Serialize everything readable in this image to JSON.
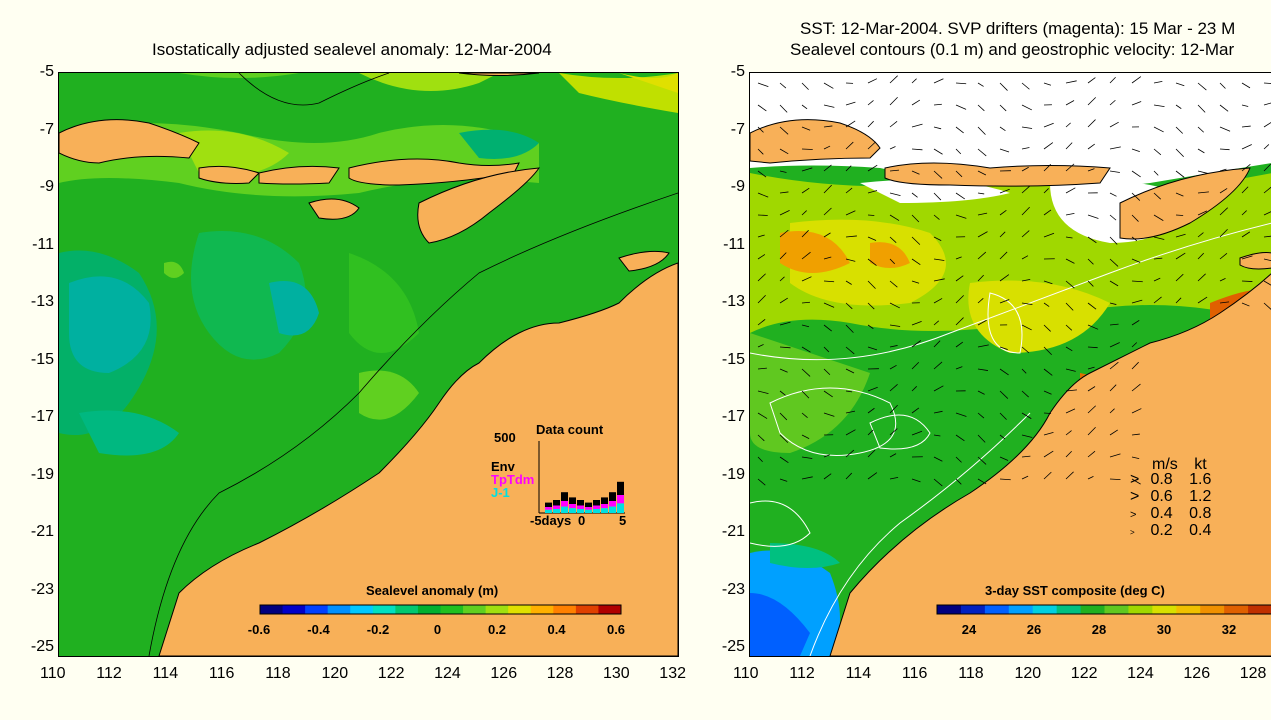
{
  "left_panel": {
    "title": "Isostatically adjusted sealevel anomaly: 12-Mar-2004",
    "colorbar": {
      "label": "Sealevel anomaly (m)",
      "ticks": [
        "-0.6",
        "-0.4",
        "-0.2",
        "0",
        "0.2",
        "0.4",
        "0.6"
      ],
      "colors": [
        "#00007f",
        "#0000c8",
        "#0040ff",
        "#0090ff",
        "#00c8ff",
        "#00e0c0",
        "#00c870",
        "#00b030",
        "#20c020",
        "#60d020",
        "#a0e010",
        "#e0e000",
        "#ffb000",
        "#ff8000",
        "#e04000",
        "#b00000"
      ]
    },
    "inset": {
      "title": "Data count",
      "ymax": "500",
      "series_labels": [
        {
          "name": "Env",
          "color": "#000000"
        },
        {
          "name": "TpTdm",
          "color": "#ff00ff"
        },
        {
          "name": "J-1",
          "color": "#00e0e0"
        }
      ],
      "xlabel_left": "-5days",
      "xlabel_mid": "0",
      "xlabel_right": "5"
    },
    "y_ticks": [
      "-5",
      "-7",
      "-9",
      "-11",
      "-13",
      "-15",
      "-17",
      "-19",
      "-21",
      "-23",
      "-25"
    ],
    "x_ticks": [
      "110",
      "112",
      "114",
      "116",
      "118",
      "120",
      "122",
      "124",
      "126",
      "128",
      "130",
      "132"
    ]
  },
  "right_panel": {
    "title_line1": "SST: 12-Mar-2004. SVP drifters (magenta): 15 Mar - 23 M",
    "title_line2": "Sealevel contours (0.1 m) and geostrophic velocity: 12-Mar",
    "colorbar": {
      "label": "3-day SST composite (deg C)",
      "ticks": [
        "24",
        "26",
        "28",
        "30",
        "32"
      ],
      "colors": [
        "#00007f",
        "#0020c0",
        "#0060ff",
        "#00a0ff",
        "#00d0e0",
        "#00c080",
        "#20b020",
        "#60c820",
        "#a0d800",
        "#d8e000",
        "#f0c000",
        "#f09000",
        "#e06000",
        "#c03000"
      ]
    },
    "velocity_legend": {
      "header_ms": "m/s",
      "header_kt": "kt",
      "rows": [
        {
          "ms": "0.8",
          "kt": "1.6"
        },
        {
          "ms": "0.6",
          "kt": "1.2"
        },
        {
          "ms": "0.4",
          "kt": "0.8"
        },
        {
          "ms": "0.2",
          "kt": "0.4"
        }
      ]
    },
    "y_ticks": [
      "-5",
      "-7",
      "-9",
      "-11",
      "-13",
      "-15",
      "-17",
      "-19",
      "-21",
      "-23",
      "-25"
    ],
    "x_ticks": [
      "110",
      "112",
      "114",
      "116",
      "118",
      "120",
      "122",
      "124",
      "126",
      "128"
    ]
  },
  "colors": {
    "land": "#f8b058",
    "ocean_green": "#20b020",
    "page_bg": "#fffff2"
  }
}
